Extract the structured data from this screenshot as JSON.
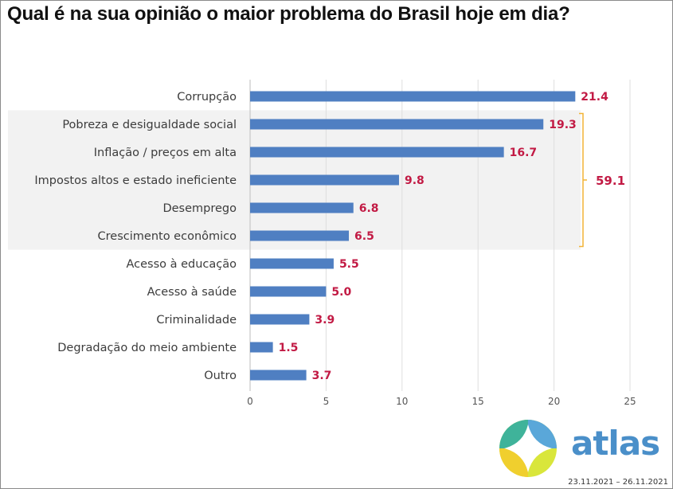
{
  "title": "Qual é na sua opinião o maior problema do Brasil hoje em dia?",
  "date_range": "23.11.2021 – 26.11.2021",
  "brand": {
    "name": "atlas"
  },
  "colors": {
    "bar": "#4f7fc2",
    "value_label": "#c21a44",
    "highlight_bg": "#f2f2f2",
    "bracket": "#f2b437"
  },
  "chart_data": {
    "type": "bar",
    "orientation": "horizontal",
    "title": "Qual é na sua opinião o maior problema do Brasil hoje em dia?",
    "categories": [
      "Corrupção",
      "Pobreza e desigualdade social",
      "Inflação / preços em alta",
      "Impostos altos e estado ineficiente",
      "Desemprego",
      "Crescimento econômico",
      "Acesso à educação",
      "Acesso à saúde",
      "Criminalidade",
      "Degradação do meio ambiente",
      "Outro"
    ],
    "values": [
      21.4,
      19.3,
      16.7,
      9.8,
      6.8,
      6.5,
      5.5,
      5.0,
      3.9,
      1.5,
      3.7
    ],
    "value_labels": [
      "21.4",
      "19.3",
      "16.7",
      "9.8",
      "6.8",
      "6.5",
      "5.5",
      "5.0",
      "3.9",
      "1.5",
      "3.7"
    ],
    "xlim": [
      0,
      25
    ],
    "xticks": [
      0,
      5,
      10,
      15,
      20,
      25
    ],
    "xtick_labels": [
      "0",
      "5",
      "10",
      "15",
      "20",
      "25"
    ],
    "grid": true,
    "highlight_group": {
      "categories": [
        "Pobreza e desigualdade social",
        "Inflação / preços em alta",
        "Impostos altos e estado ineficiente",
        "Desemprego",
        "Crescimento econômico"
      ],
      "total_label": "59.1"
    }
  }
}
